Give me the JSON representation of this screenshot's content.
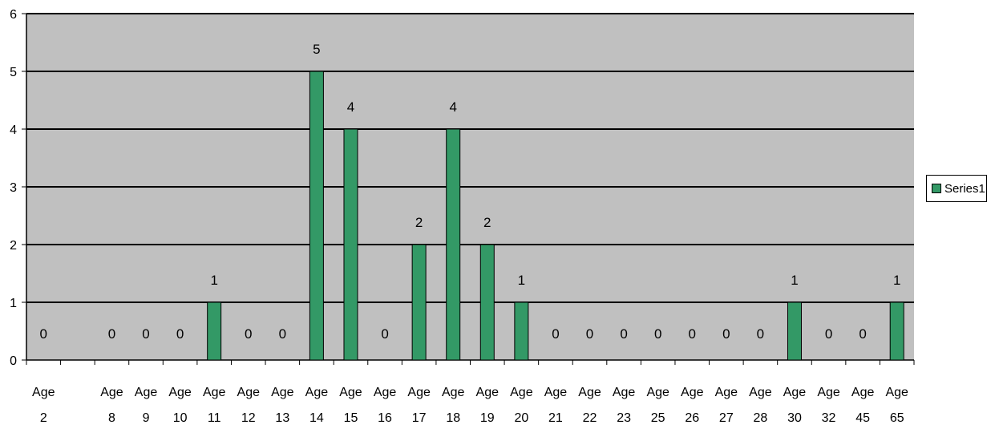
{
  "chart_data": {
    "type": "bar",
    "categories": [
      [
        "Age",
        "2"
      ],
      [
        "",
        ""
      ],
      [
        "Age",
        "8"
      ],
      [
        "Age",
        "9"
      ],
      [
        "Age",
        "10"
      ],
      [
        "Age",
        "11"
      ],
      [
        "Age",
        "12"
      ],
      [
        "Age",
        "13"
      ],
      [
        "Age",
        "14"
      ],
      [
        "Age",
        "15"
      ],
      [
        "Age",
        "16"
      ],
      [
        "Age",
        "17"
      ],
      [
        "Age",
        "18"
      ],
      [
        "Age",
        "19"
      ],
      [
        "Age",
        "20"
      ],
      [
        "Age",
        "21"
      ],
      [
        "Age",
        "22"
      ],
      [
        "Age",
        "23"
      ],
      [
        "Age",
        "25"
      ],
      [
        "Age",
        "26"
      ],
      [
        "Age",
        "27"
      ],
      [
        "Age",
        "28"
      ],
      [
        "Age",
        "30"
      ],
      [
        "Age",
        "32"
      ],
      [
        "Age",
        "45"
      ],
      [
        "Age",
        "65"
      ]
    ],
    "series": [
      {
        "name": "Series1",
        "values": [
          0,
          null,
          0,
          0,
          0,
          1,
          0,
          0,
          5,
          4,
          0,
          2,
          4,
          2,
          1,
          0,
          0,
          0,
          0,
          0,
          0,
          0,
          1,
          0,
          0,
          1
        ],
        "color": "#339966"
      }
    ],
    "ylim": [
      0,
      6
    ],
    "yticks": [
      "0",
      "1",
      "2",
      "3",
      "4",
      "5",
      "6"
    ],
    "plot_background": "#c0c0c0",
    "gridlines": true,
    "legend_position": "right",
    "data_labels": true
  },
  "legend": {
    "label": "Series1"
  }
}
